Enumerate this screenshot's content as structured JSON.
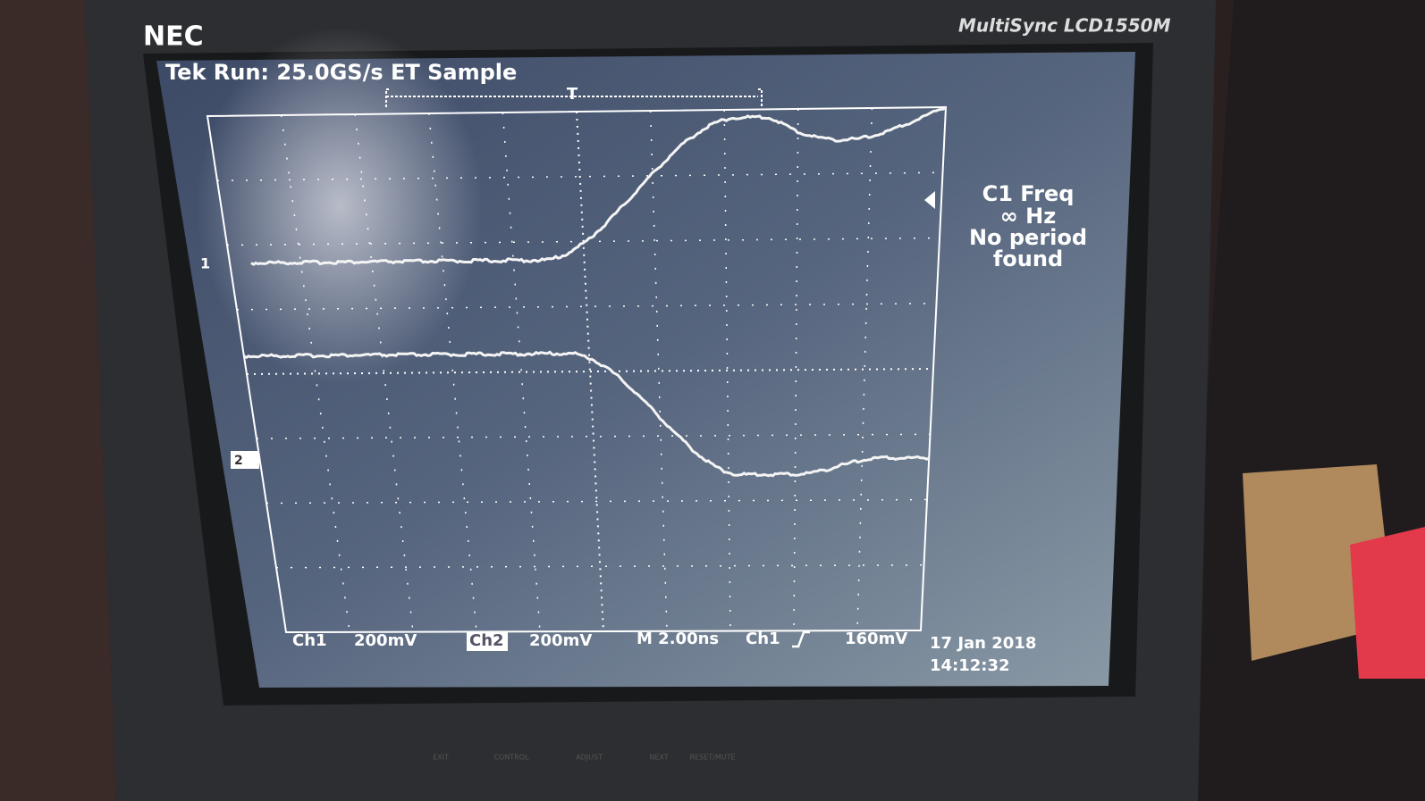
{
  "monitor": {
    "brand": "NEC",
    "model": "MultiSync LCD1550M",
    "buttons": [
      "EXIT",
      "CONTROL",
      "ADJUST",
      "NEXT",
      "RESET/MUTE"
    ]
  },
  "scope": {
    "header": "Tek Run: 25.0GS/s ET Sample",
    "trigger_marker": "T",
    "ch1_marker": "1",
    "ch2_marker": "2",
    "measurement": [
      "C1 Freq",
      "∞ Hz",
      "No period",
      "found"
    ],
    "footer": {
      "ch1": "Ch1",
      "ch1_scale": "200mV",
      "ch2": "Ch2",
      "ch2_scale": "200mV",
      "timebase": "M 2.00ns",
      "trigger_source": "Ch1",
      "trigger_level": "160mV",
      "date": "17 Jan 2018",
      "time": "14:12:32"
    }
  }
}
